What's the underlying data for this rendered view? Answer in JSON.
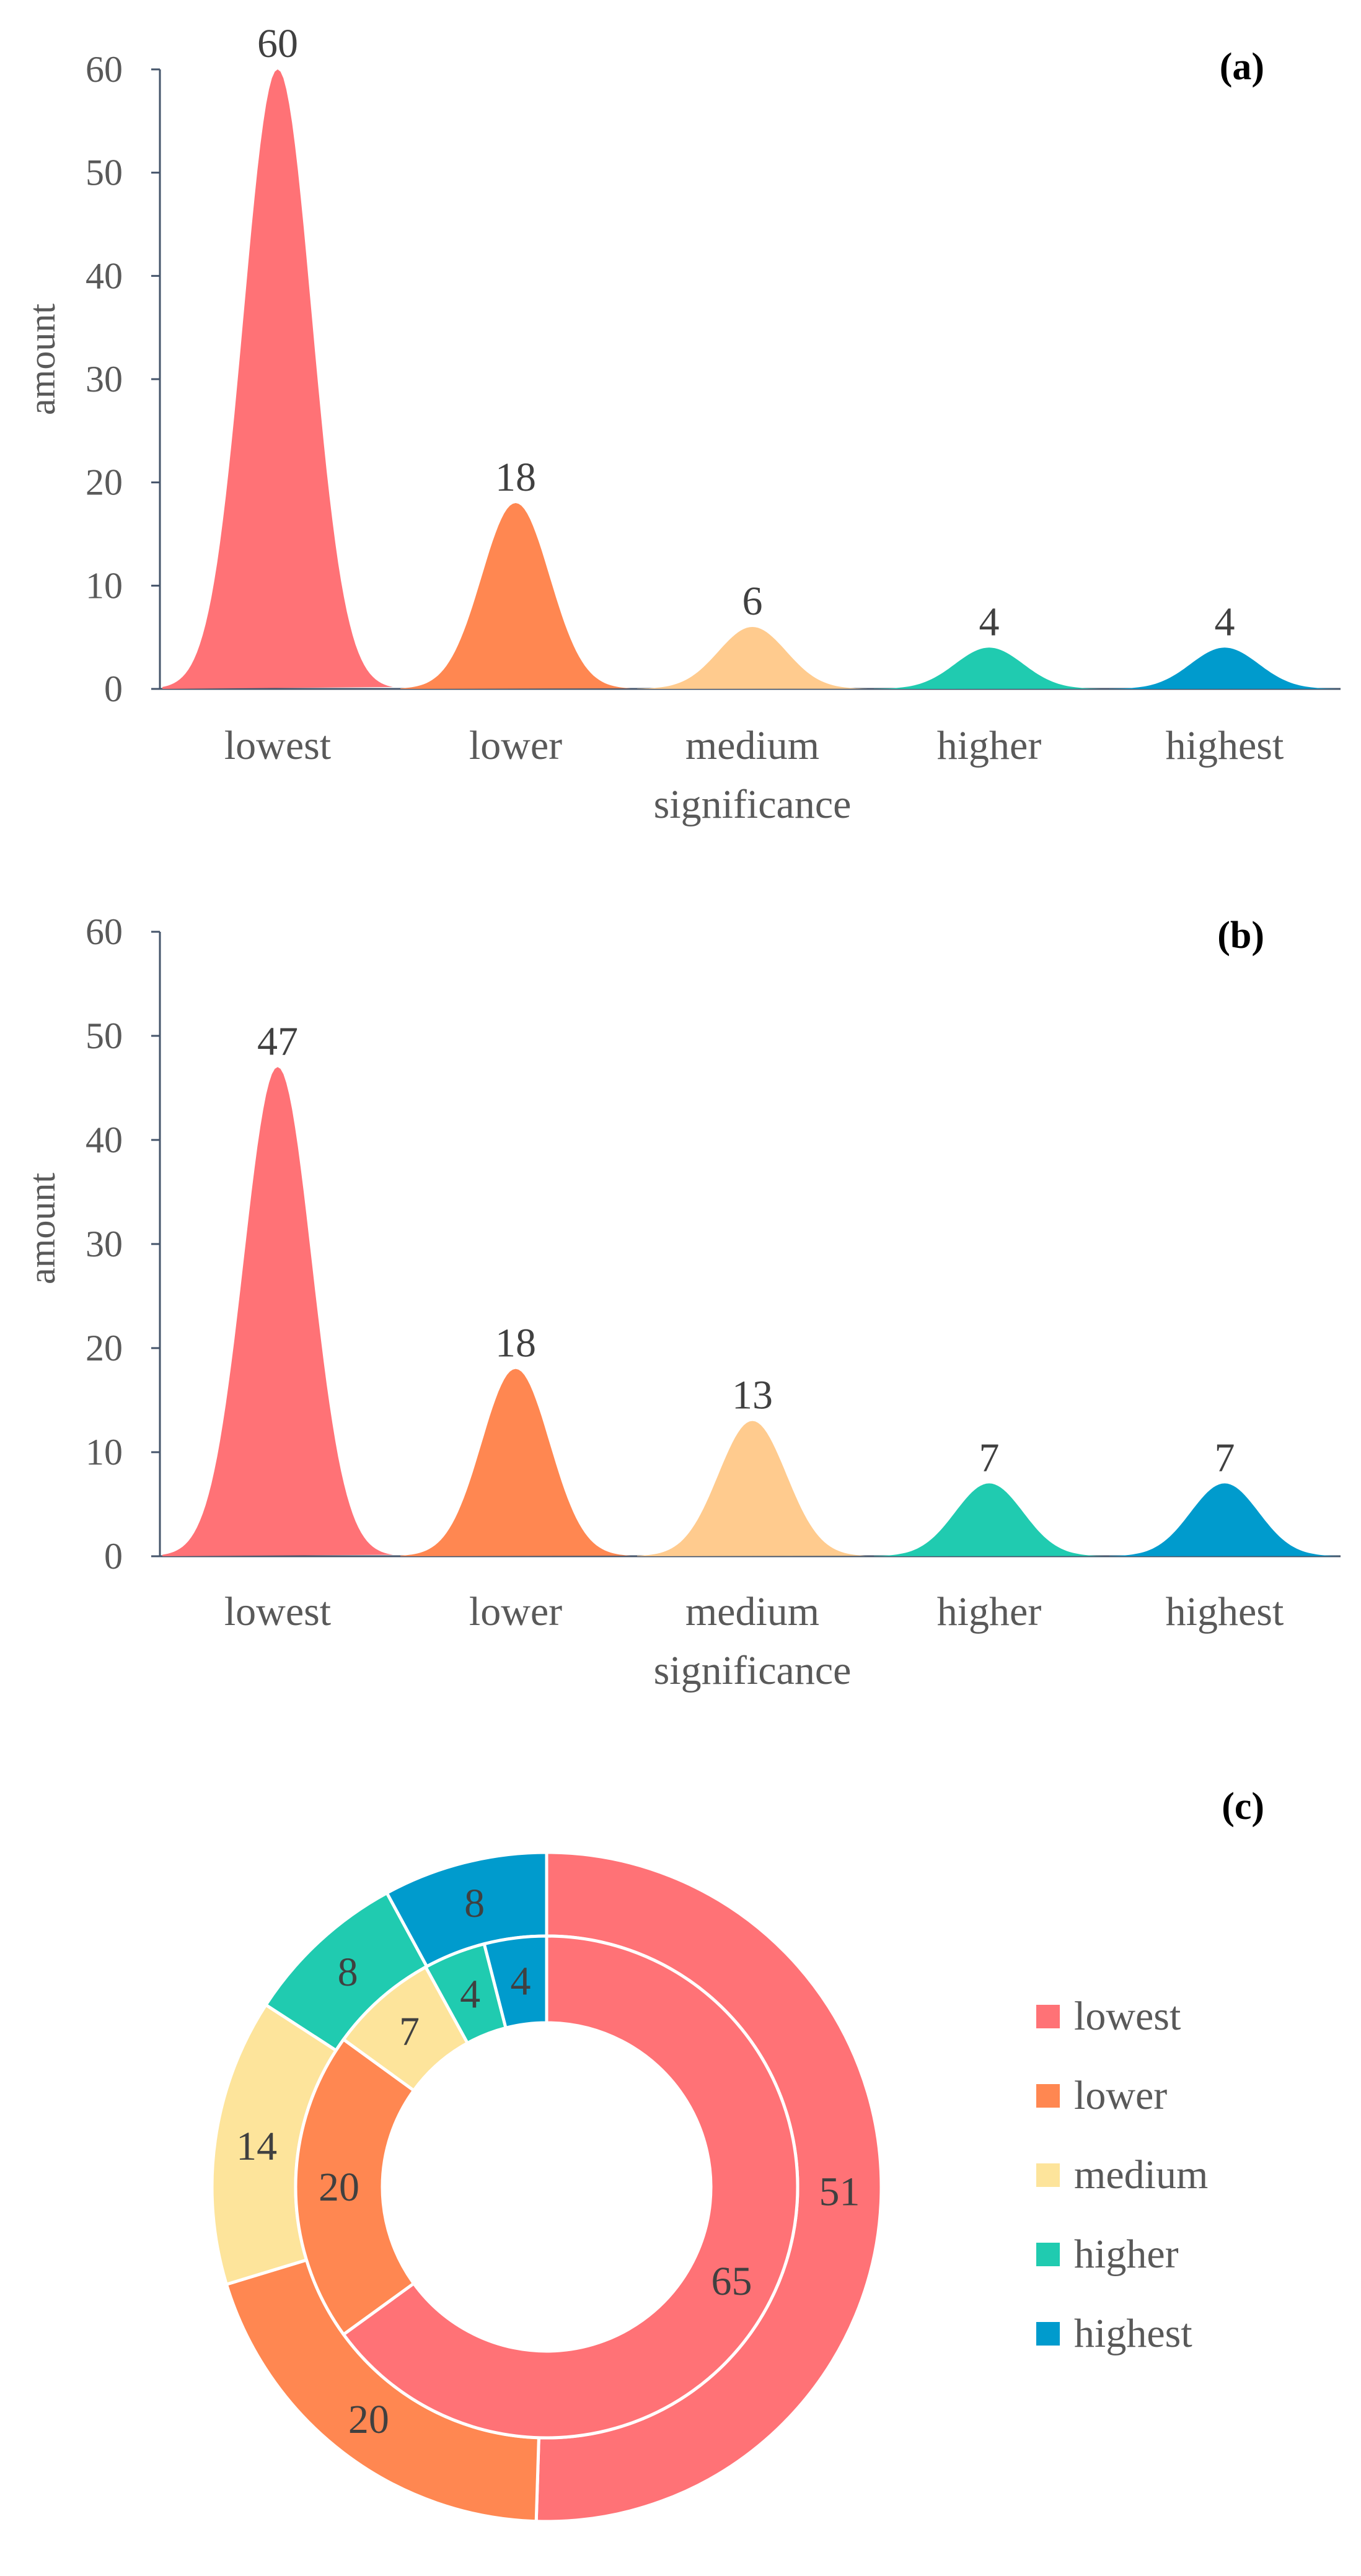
{
  "colors": {
    "lowest": "#ff7276",
    "lower": "#ff8751",
    "medium": "#ffcb8e",
    "medium_donut": "#fde49b",
    "higher": "#20cbb0",
    "highest": "#009bcd"
  },
  "chart_data": [
    {
      "type": "area",
      "panel": "(a)",
      "categories": [
        "lowest",
        "lower",
        "medium",
        "higher",
        "highest"
      ],
      "category_line2": [
        "",
        "",
        "significance",
        "",
        ""
      ],
      "values": [
        60,
        18,
        6,
        4,
        4
      ],
      "value_labels": [
        "60",
        "18",
        "6",
        "4",
        "4"
      ],
      "ylabel": "amount",
      "ylim": [
        0,
        60
      ],
      "yticks": [
        "0",
        "10",
        "20",
        "30",
        "40",
        "50",
        "60"
      ]
    },
    {
      "type": "area",
      "panel": "(b)",
      "categories": [
        "lowest",
        "lower",
        "medium",
        "higher",
        "highest"
      ],
      "category_line2": [
        "",
        "",
        "significance",
        "",
        ""
      ],
      "values": [
        47,
        18,
        13,
        7,
        7
      ],
      "value_labels": [
        "47",
        "18",
        "13",
        "7",
        "7"
      ],
      "ylabel": "amount",
      "ylim": [
        0,
        60
      ],
      "yticks": [
        "0",
        "10",
        "20",
        "30",
        "40",
        "50",
        "60"
      ]
    },
    {
      "type": "pie",
      "panel": "(c)",
      "style": "double-donut",
      "categories": [
        "lowest",
        "lower",
        "medium",
        "higher",
        "highest"
      ],
      "series": [
        {
          "name": "outer ring",
          "values": [
            51,
            20,
            14,
            8,
            8
          ],
          "labels": [
            "51",
            "20",
            "14",
            "8",
            "8"
          ]
        },
        {
          "name": "inner ring",
          "values": [
            65,
            20,
            7,
            4,
            4
          ],
          "labels": [
            "65",
            "20",
            "7",
            "4",
            "4"
          ]
        }
      ],
      "legend": [
        "lowest",
        "lower",
        "medium",
        "higher",
        "highest"
      ]
    }
  ]
}
